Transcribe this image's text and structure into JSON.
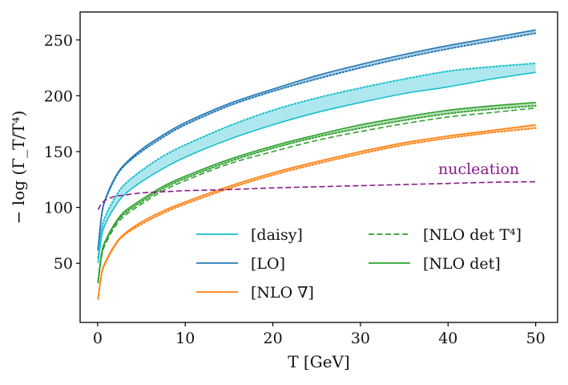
{
  "chart_data": {
    "type": "line",
    "xlabel": "T [GeV]",
    "ylabel": "− log (Γ_T/T⁴)",
    "xlim": [
      -2,
      52.5
    ],
    "ylim": [
      -3,
      275
    ],
    "xticks": [
      0,
      10,
      20,
      30,
      40,
      50
    ],
    "yticks": [
      50,
      100,
      150,
      200,
      250
    ],
    "grid": false,
    "legend_position": "lower-right",
    "legend": [
      {
        "label": "[daisy]",
        "color": "#17becf",
        "style": "solid"
      },
      {
        "label": "[NLO det T⁴]",
        "color": "#2ca02c",
        "style": "dashed"
      },
      {
        "label": "[LO]",
        "color": "#1f77b4",
        "style": "solid"
      },
      {
        "label": "[NLO det]",
        "color": "#2ca02c",
        "style": "solid"
      },
      {
        "label": "[NLO ∇]",
        "color": "#ff7f0e",
        "style": "solid"
      }
    ],
    "x": [
      0.05,
      0.5,
      1,
      2,
      3,
      5,
      7.5,
      10,
      15,
      20,
      25,
      30,
      35,
      40,
      45,
      50
    ],
    "series": [
      {
        "name": "[LO] upper",
        "color": "#1f77b4",
        "style": "solid",
        "band": "LO",
        "values": [
          63,
          96,
          110,
          127,
          138,
          152,
          165,
          176,
          193,
          206,
          218,
          228,
          237,
          245,
          252,
          259
        ]
      },
      {
        "name": "[LO] lower",
        "color": "#1f77b4",
        "style": "dotted",
        "band": "LO",
        "values": [
          62,
          95,
          109,
          126,
          137,
          150,
          163,
          174,
          191,
          204,
          215,
          225,
          234,
          242,
          249,
          256
        ]
      },
      {
        "name": "[daisy] upper",
        "color": "#17becf",
        "style": "dotted",
        "band": "daisy",
        "values": [
          55,
          82,
          94,
          109,
          120,
          133,
          146,
          156,
          173,
          187,
          198,
          207,
          215,
          222,
          226,
          229
        ]
      },
      {
        "name": "[daisy]",
        "color": "#17becf",
        "style": "solid",
        "band": "daisy",
        "values": [
          50,
          76,
          87,
          101,
          111,
          123,
          135,
          145,
          161,
          174,
          185,
          194,
          202,
          208,
          215,
          221
        ]
      },
      {
        "name": "[NLO det]",
        "color": "#2ca02c",
        "style": "solid",
        "band": "NLOdet",
        "values": [
          34,
          61,
          72,
          86,
          96,
          107,
          119,
          128,
          143,
          155,
          165,
          174,
          181,
          187,
          191,
          194
        ]
      },
      {
        "name": "[NLO det] lower",
        "color": "#2ca02c",
        "style": "dotted",
        "band": "NLOdet",
        "values": [
          33,
          60,
          71,
          85,
          94,
          105,
          117,
          126,
          141,
          153,
          163,
          171,
          178,
          184,
          188,
          191
        ]
      },
      {
        "name": "[NLO det T⁴]",
        "color": "#2ca02c",
        "style": "dashed",
        "values": [
          32,
          58,
          69,
          83,
          92,
          103,
          115,
          124,
          139,
          150,
          160,
          168,
          175,
          181,
          185,
          189
        ]
      },
      {
        "name": "[NLO ∇] upper",
        "color": "#ff7f0e",
        "style": "solid",
        "band": "NLOgrad",
        "values": [
          19,
          43,
          53,
          67,
          76,
          87,
          97,
          105,
          119,
          131,
          141,
          150,
          158,
          164,
          169,
          174
        ]
      },
      {
        "name": "[NLO ∇] lower",
        "color": "#ff7f0e",
        "style": "dotted",
        "band": "NLOgrad",
        "values": [
          18,
          42,
          52,
          66,
          75,
          85,
          95,
          103,
          117,
          129,
          139,
          148,
          156,
          162,
          167,
          171
        ]
      },
      {
        "name": "nucleation",
        "color": "#8b1a8b",
        "style": "dashed",
        "values": [
          98,
          104,
          107,
          110,
          111,
          113,
          114,
          115,
          116,
          117.5,
          118.5,
          119.5,
          120.5,
          121.5,
          122.5,
          123
        ]
      }
    ],
    "bands": [
      {
        "name": "LO",
        "color": "#1f77b4",
        "opacity": 0.35
      },
      {
        "name": "daisy",
        "color": "#17becf",
        "opacity": 0.35
      },
      {
        "name": "NLOdet",
        "color": "#2ca02c",
        "opacity": 0.35
      },
      {
        "name": "NLOgrad",
        "color": "#ff7f0e",
        "opacity": 0.35
      }
    ],
    "annotations": [
      {
        "text": "nucleation",
        "x": 43.5,
        "y": 130,
        "color": "#8b1a8b"
      }
    ]
  }
}
